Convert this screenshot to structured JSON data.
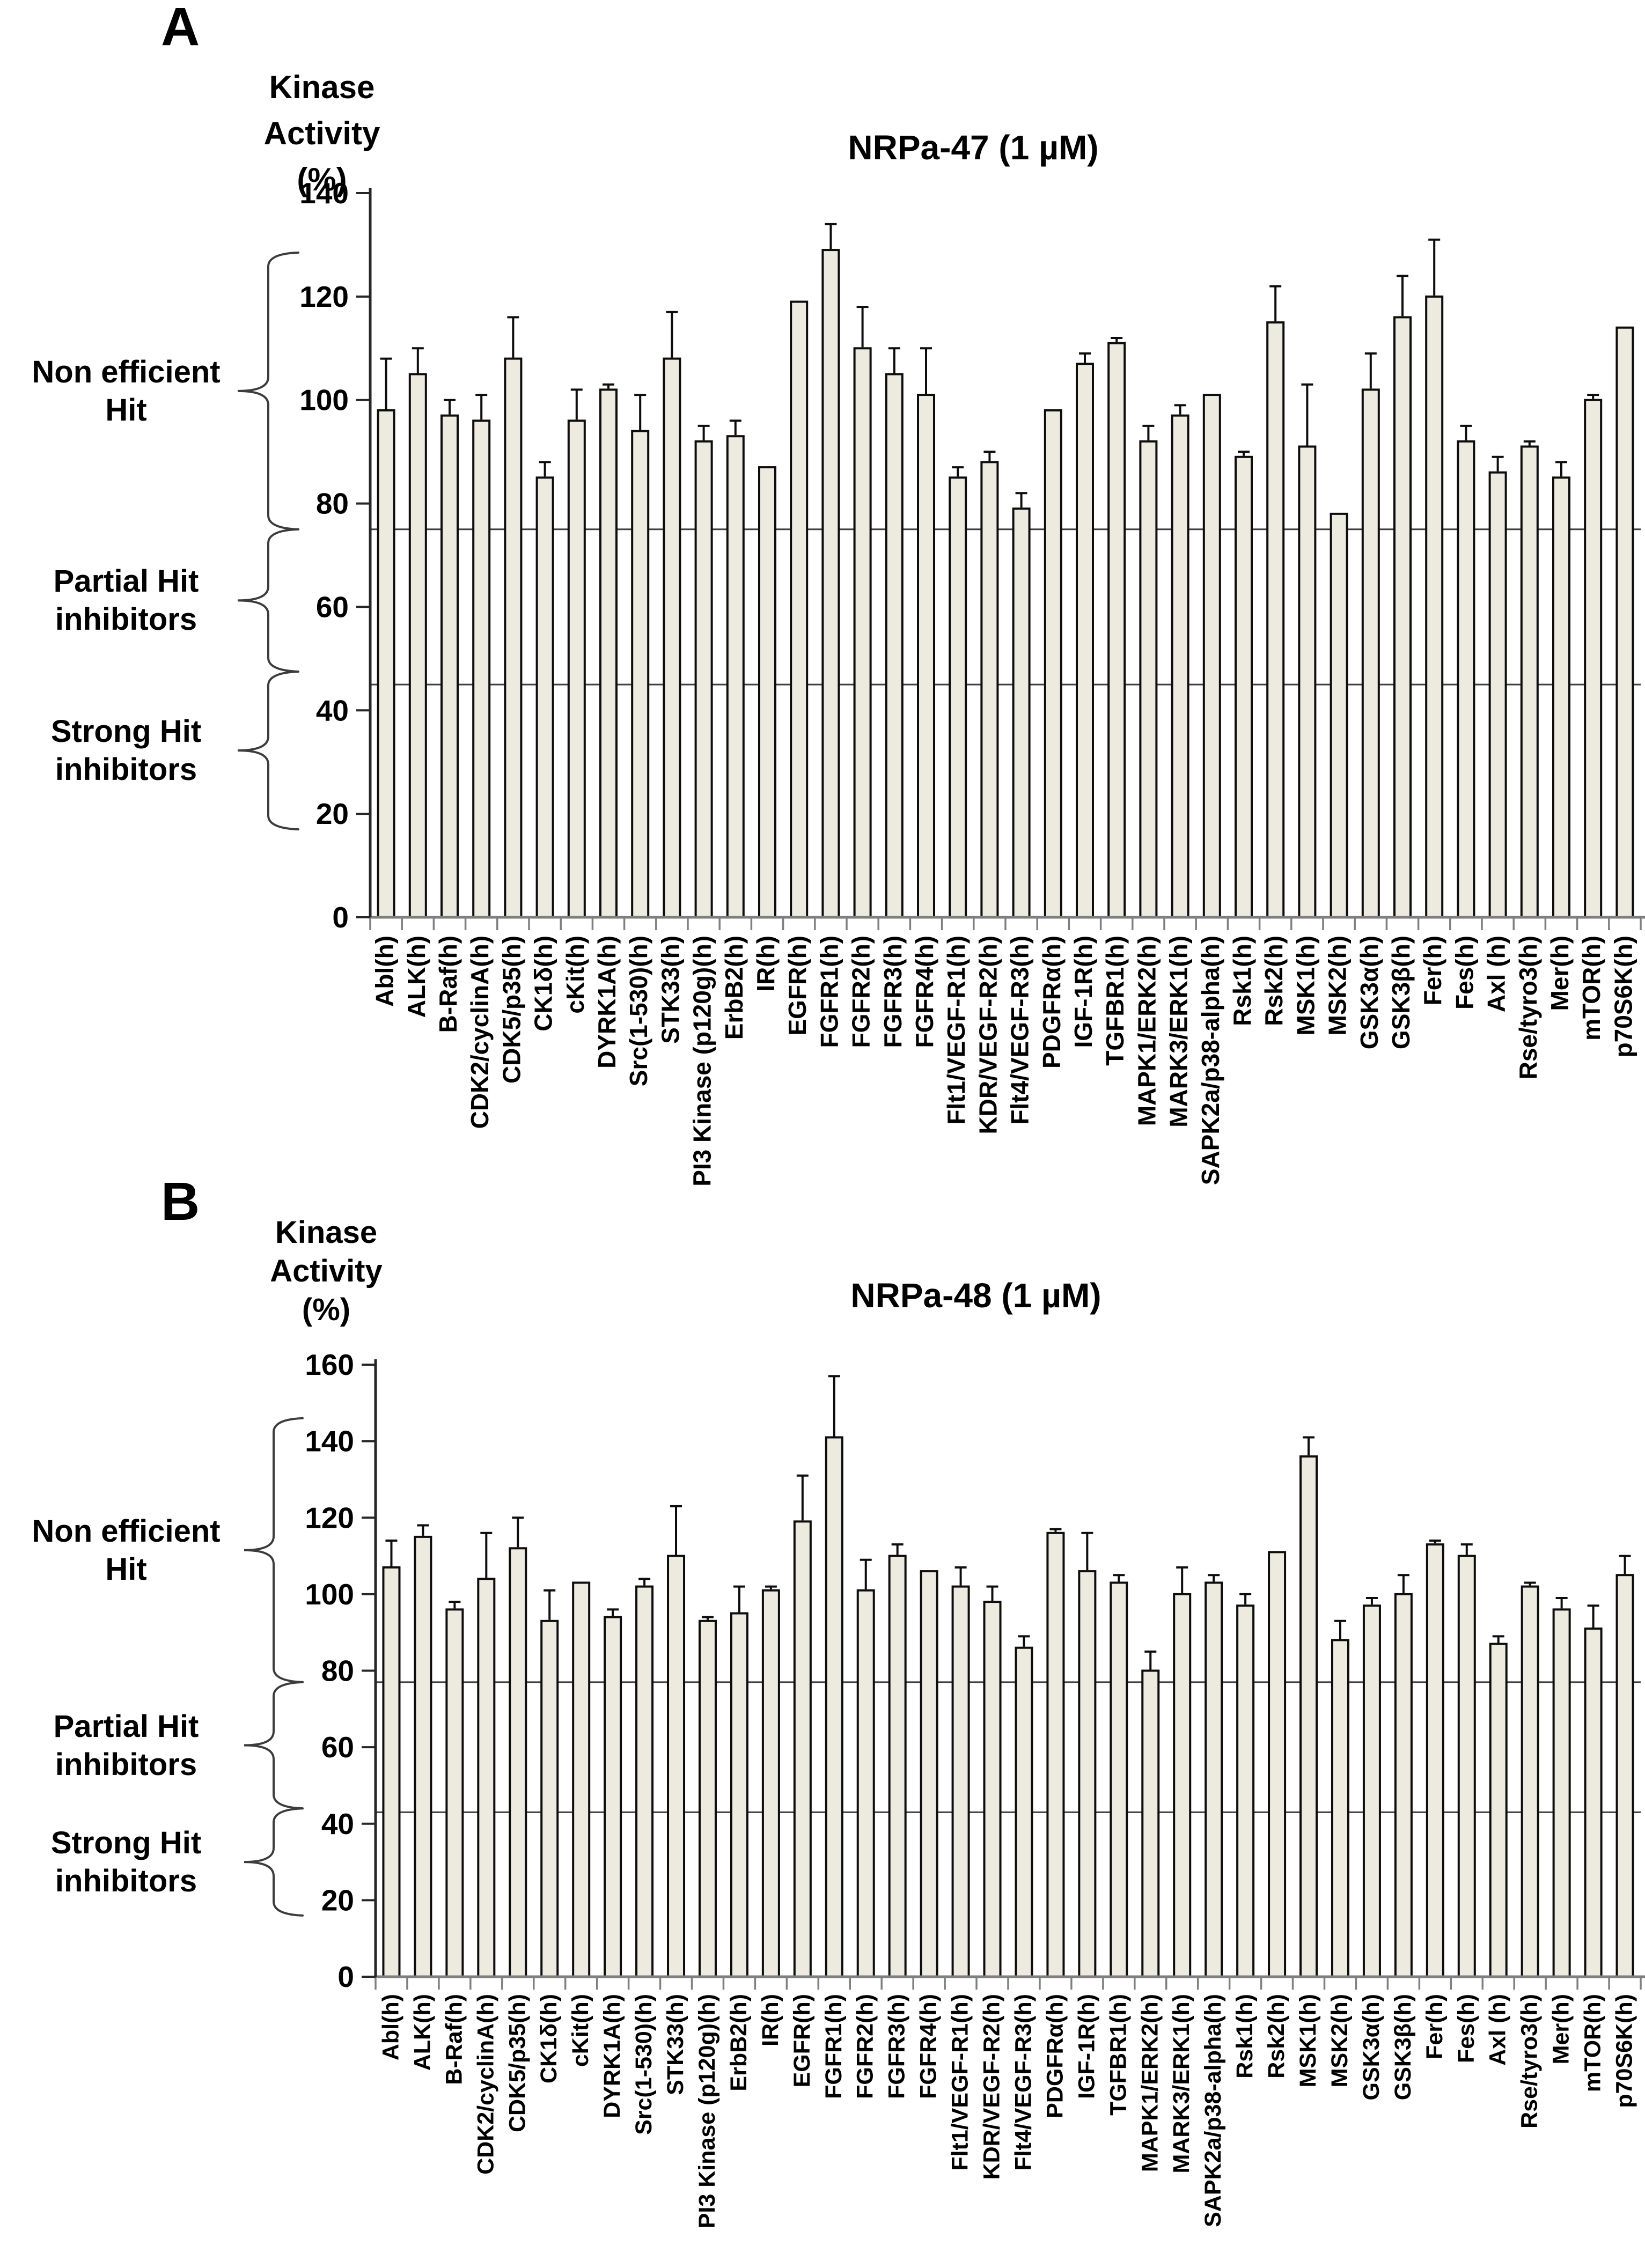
{
  "figure": {
    "panels": [
      {
        "letter": "A",
        "y_axis_title_lines": [
          "Kinase",
          "Activity",
          "(%)"
        ],
        "regions": [
          {
            "lines": [
              "Non efficient",
              "Hit"
            ]
          },
          {
            "lines": [
              "Partial Hit",
              "inhibitors"
            ]
          },
          {
            "lines": [
              "Strong Hit",
              "inhibitors"
            ]
          }
        ]
      },
      {
        "letter": "B",
        "y_axis_title_lines": [
          "Kinase",
          "Activity",
          "(%)"
        ],
        "regions": [
          {
            "lines": [
              "Non efficient",
              "Hit"
            ]
          },
          {
            "lines": [
              "Partial Hit",
              "inhibitors"
            ]
          },
          {
            "lines": [
              "Strong Hit",
              "inhibitors"
            ]
          }
        ]
      }
    ]
  },
  "chart_data": [
    {
      "type": "bar",
      "title": "NRPa-47  (1 µM)",
      "ylabel": "Kinase Activity (%)",
      "xlabel": "",
      "ylim": [
        0,
        140
      ],
      "ytick_step": 20,
      "grid": false,
      "legend": "none",
      "ref_lines": [
        75,
        45
      ],
      "region_spans": [
        [
          128.5,
          75
        ],
        [
          75,
          47.5
        ],
        [
          47.5,
          17
        ]
      ],
      "bar_fill": "#EDEBE0",
      "bar_stroke": "#0d0d0d",
      "categories": [
        "Abl(h)",
        "ALK(h)",
        "B-Raf(h)",
        "CDK2/cyclinA(h)",
        "CDK5/p35(h)",
        "CK1δ(h)",
        "cKit(h)",
        "DYRK1A(h)",
        "Src(1-530)(h)",
        "STK33(h)",
        "PI3 Kinase (p120g)(h)",
        "ErbB2(h)",
        "IR(h)",
        "EGFR(h)",
        "FGFR1(h)",
        "FGFR2(h)",
        "FGFR3(h)",
        "FGFR4(h)",
        "Flt1/VEGF-R1(h)",
        "KDR/VEGF-R2(h)",
        "Flt4/VEGF-R3(h)",
        "PDGFRα(h)",
        "IGF-1R(h)",
        "TGFBR1(h)",
        "MAPK1/ERK2(h)",
        "MARK3/ERK1(h)",
        "SAPK2a/p38-alpha(h)",
        "Rsk1(h)",
        "Rsk2(h)",
        "MSK1(h)",
        "MSK2(h)",
        "GSK3α(h)",
        "GSK3β(h)",
        "Fer(h)",
        "Fes(h)",
        "Axl (h)",
        "Rse/tyro3(h)",
        "Mer(h)",
        "mTOR(h)",
        "p70S6K(h)"
      ],
      "values": [
        98,
        105,
        97,
        96,
        108,
        85,
        96,
        102,
        94,
        108,
        92,
        93,
        87,
        119,
        129,
        110,
        105,
        101,
        85,
        88,
        79,
        98,
        107,
        111,
        92,
        97,
        101,
        89,
        115,
        91,
        78,
        102,
        116,
        120,
        92,
        86,
        91,
        85,
        100,
        114
      ],
      "errors": [
        10,
        5,
        3,
        5,
        8,
        3,
        6,
        1,
        7,
        9,
        3,
        3,
        0,
        0,
        5,
        8,
        5,
        9,
        2,
        2,
        3,
        0,
        2,
        1,
        3,
        2,
        0,
        1,
        7,
        12,
        0,
        7,
        8,
        11,
        3,
        3,
        1,
        3,
        1,
        0
      ]
    },
    {
      "type": "bar",
      "title": "NRPa-48 (1 µM)",
      "ylabel": "Kinase Activity (%)",
      "xlabel": "",
      "ylim": [
        0,
        160
      ],
      "ytick_step": 20,
      "grid": false,
      "legend": "none",
      "ref_lines": [
        77,
        43
      ],
      "region_spans": [
        [
          146,
          77
        ],
        [
          77,
          44
        ],
        [
          44,
          16
        ]
      ],
      "bar_fill": "#EDEBE0",
      "bar_stroke": "#0d0d0d",
      "categories": [
        "Abl(h)",
        "ALK(h)",
        "B-Raf(h)",
        "CDK2/cyclinA(h)",
        "CDK5/p35(h)",
        "CK1δ(h)",
        "cKit(h)",
        "DYRK1A(h)",
        "Src(1-530)(h)",
        "STK33(h)",
        "PI3 Kinase (p120g)(h)",
        "ErbB2(h)",
        "IR(h)",
        "EGFR(h)",
        "FGFR1(h)",
        "FGFR2(h)",
        "FGFR3(h)",
        "FGFR4(h)",
        "Flt1/VEGF-R1(h)",
        "KDR/VEGF-R2(h)",
        "Flt4/VEGF-R3(h)",
        "PDGFRα(h)",
        "IGF-1R(h)",
        "TGFBR1(h)",
        "MAPK1/ERK2(h)",
        "MARK3/ERK1(h)",
        "SAPK2a/p38-alpha(h)",
        "Rsk1(h)",
        "Rsk2(h)",
        "MSK1(h)",
        "MSK2(h)",
        "GSK3α(h)",
        "GSK3β(h)",
        "Fer(h)",
        "Fes(h)",
        "Axl (h)",
        "Rse/tyro3(h)",
        "Mer(h)",
        "mTOR(h)",
        "p70S6K(h)"
      ],
      "values": [
        107,
        115,
        96,
        104,
        112,
        93,
        103,
        94,
        102,
        110,
        93,
        95,
        101,
        119,
        141,
        101,
        110,
        106,
        102,
        98,
        86,
        116,
        106,
        103,
        80,
        100,
        103,
        97,
        111,
        136,
        88,
        97,
        100,
        113,
        110,
        87,
        102,
        96,
        91,
        105
      ],
      "errors": [
        7,
        3,
        2,
        12,
        8,
        8,
        0,
        2,
        2,
        13,
        1,
        7,
        1,
        12,
        16,
        8,
        3,
        0,
        5,
        4,
        3,
        1,
        10,
        2,
        5,
        7,
        2,
        3,
        0,
        5,
        5,
        2,
        5,
        1,
        3,
        2,
        1,
        3,
        6,
        5
      ]
    }
  ]
}
